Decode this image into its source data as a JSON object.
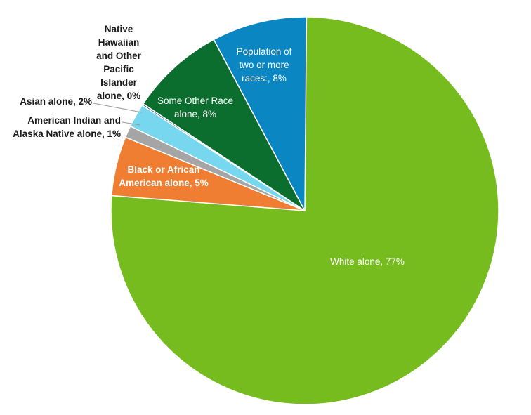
{
  "chart_data": {
    "type": "pie",
    "title": "",
    "start_angle_deg": 0,
    "direction": "clockwise",
    "slices": [
      {
        "label": "White alone, 77%",
        "value": 77,
        "color": "#77bc1f"
      },
      {
        "label": "Black or African American alone, 5%",
        "value": 5,
        "color": "#ef7d32"
      },
      {
        "label": "American Indian and Alaska Native alone, 1%",
        "value": 1,
        "color": "#a5a5a5"
      },
      {
        "label": "Asian alone, 2%",
        "value": 2,
        "color": "#77d7ef"
      },
      {
        "label": "Native Hawaiian and Other Pacific Islander alone, 0%",
        "value": 0,
        "color": "#1f4e79"
      },
      {
        "label": "Some Other Race alone, 8%",
        "value": 8,
        "color": "#0c6e2e"
      },
      {
        "label": "Population of two or more races:, 8%",
        "value": 8,
        "color": "#0a87c2"
      }
    ]
  }
}
